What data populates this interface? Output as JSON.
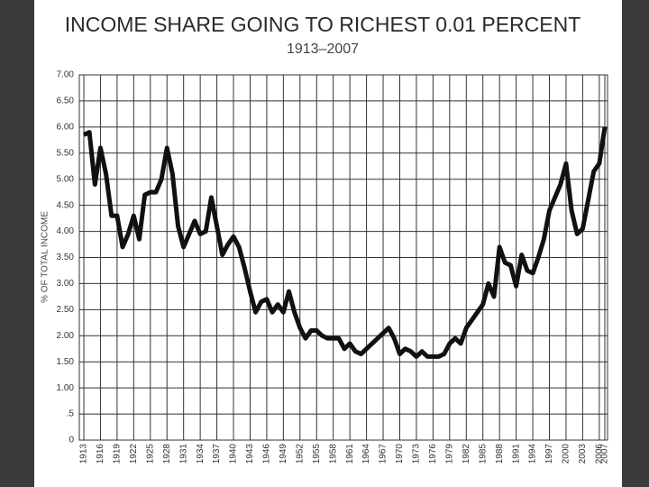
{
  "chart_data": {
    "type": "line",
    "title": "INCOME SHARE GOING TO RICHEST 0.01 PERCENT",
    "subtitle": "1913–2007",
    "y_label": "% OF TOTAL INCOME",
    "color": "#111111",
    "grid": true,
    "x": [
      1913,
      1914,
      1915,
      1916,
      1917,
      1918,
      1919,
      1920,
      1921,
      1922,
      1923,
      1924,
      1925,
      1926,
      1927,
      1928,
      1929,
      1930,
      1931,
      1932,
      1933,
      1934,
      1935,
      1936,
      1937,
      1938,
      1939,
      1940,
      1941,
      1942,
      1943,
      1944,
      1945,
      1946,
      1947,
      1948,
      1949,
      1950,
      1951,
      1952,
      1953,
      1954,
      1955,
      1956,
      1957,
      1958,
      1959,
      1960,
      1961,
      1962,
      1963,
      1964,
      1965,
      1966,
      1967,
      1968,
      1969,
      1970,
      1971,
      1972,
      1973,
      1974,
      1975,
      1976,
      1977,
      1978,
      1979,
      1980,
      1981,
      1982,
      1983,
      1984,
      1985,
      1986,
      1987,
      1988,
      1989,
      1990,
      1991,
      1992,
      1993,
      1994,
      1995,
      1996,
      1997,
      1998,
      1999,
      2000,
      2001,
      2002,
      2003,
      2004,
      2005,
      2006,
      2007
    ],
    "values": [
      5.85,
      5.9,
      4.9,
      5.6,
      5.1,
      4.3,
      4.3,
      3.7,
      3.95,
      4.3,
      3.85,
      4.7,
      4.75,
      4.75,
      5.0,
      5.6,
      5.1,
      4.1,
      3.7,
      3.95,
      4.2,
      3.95,
      4.0,
      4.65,
      4.1,
      3.55,
      3.75,
      3.9,
      3.7,
      3.3,
      2.85,
      2.45,
      2.65,
      2.7,
      2.45,
      2.6,
      2.45,
      2.85,
      2.45,
      2.15,
      1.95,
      2.1,
      2.1,
      2.0,
      1.95,
      1.95,
      1.95,
      1.75,
      1.85,
      1.7,
      1.65,
      1.75,
      1.85,
      1.95,
      2.05,
      2.15,
      1.95,
      1.65,
      1.75,
      1.7,
      1.6,
      1.7,
      1.6,
      1.6,
      1.6,
      1.65,
      1.85,
      1.95,
      1.85,
      2.15,
      2.3,
      2.45,
      2.6,
      3.0,
      2.75,
      3.7,
      3.4,
      3.35,
      2.95,
      3.55,
      3.25,
      3.2,
      3.5,
      3.85,
      4.4,
      4.65,
      4.9,
      5.3,
      4.4,
      3.95,
      4.05,
      4.6,
      5.15,
      5.3,
      6.0
    ],
    "xlim": [
      1913,
      2007
    ],
    "xticks": [
      1913,
      1916,
      1919,
      1922,
      1925,
      1928,
      1931,
      1934,
      1937,
      1940,
      1943,
      1946,
      1949,
      1952,
      1955,
      1958,
      1961,
      1964,
      1967,
      1970,
      1973,
      1976,
      1979,
      1982,
      1985,
      1988,
      1991,
      1994,
      1997,
      2000,
      2003,
      2006,
      2007
    ],
    "ylim": [
      0,
      7
    ],
    "yticks": [
      0,
      {
        "value": 0.5,
        "label": ".5"
      },
      {
        "value": 1,
        "label": "1.00"
      },
      {
        "value": 1.5,
        "label": "1.50"
      },
      {
        "value": 2,
        "label": "2.00"
      },
      {
        "value": 2.5,
        "label": "2.50"
      },
      {
        "value": 3,
        "label": "3.00"
      },
      {
        "value": 3.5,
        "label": "3.50"
      },
      {
        "value": 4,
        "label": "4.00"
      },
      {
        "value": 4.5,
        "label": "4.50"
      },
      {
        "value": 5,
        "label": "5.00"
      },
      {
        "value": 5.5,
        "label": "5.50"
      },
      {
        "value": 6,
        "label": "6.00"
      },
      {
        "value": 6.5,
        "label": "6.50"
      },
      {
        "value": 7,
        "label": "7.00"
      }
    ]
  }
}
